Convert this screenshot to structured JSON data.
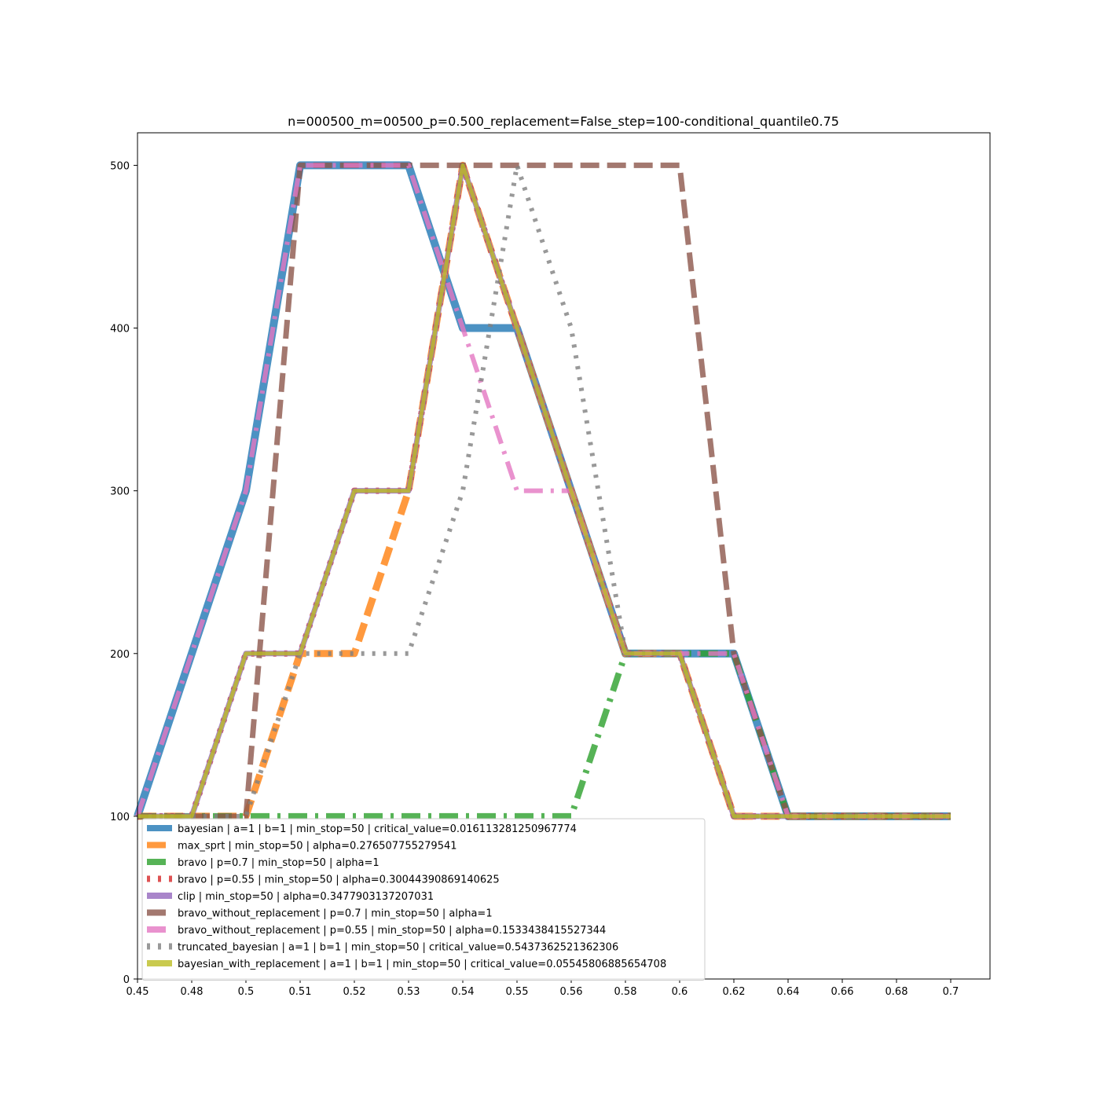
{
  "chart_data": {
    "type": "line",
    "title": "n=000500_m=00500_p=0.500_replacement=False_step=100-conditional_quantile0.75",
    "xlabel": "",
    "ylabel": "",
    "x_ticks": [
      "0.45",
      "0.48",
      "0.5",
      "0.51",
      "0.52",
      "0.53",
      "0.54",
      "0.55",
      "0.56",
      "0.58",
      "0.6",
      "0.62",
      "0.64",
      "0.66",
      "0.68",
      "0.7"
    ],
    "y_ticks": [
      0,
      100,
      200,
      300,
      400,
      500
    ],
    "ylim": [
      0,
      520
    ],
    "grid": false,
    "legend_position": "lower-left",
    "series": [
      {
        "name": "bayesian | a=1 | b=1 | min_stop=50 | critical_value=0.016113281250967774",
        "color": "#1f77b4",
        "style": "solid",
        "values": [
          100,
          200,
          300,
          500,
          500,
          500,
          400,
          400,
          300,
          200,
          200,
          200,
          100,
          100,
          100,
          100
        ]
      },
      {
        "name": "max_sprt | min_stop=50 | alpha=0.276507755279541",
        "color": "#ff7f0e",
        "style": "dashed",
        "values": [
          100,
          100,
          100,
          200,
          200,
          300,
          500,
          400,
          300,
          200,
          200,
          100,
          100,
          100,
          100,
          100
        ]
      },
      {
        "name": "bravo    | p=0.7 | min_stop=50 | alpha=1",
        "color": "#2ca02c",
        "style": "dashdot",
        "values": [
          100,
          100,
          100,
          100,
          100,
          100,
          100,
          100,
          100,
          200,
          200,
          200,
          100,
          100,
          100,
          100
        ]
      },
      {
        "name": "bravo    | p=0.55 | min_stop=50 | alpha=0.30044390869140625",
        "color": "#d62728",
        "style": "dotted",
        "values": [
          100,
          100,
          200,
          200,
          300,
          300,
          500,
          400,
          300,
          200,
          200,
          100,
          100,
          100,
          100,
          100
        ]
      },
      {
        "name": "clip     | min_stop=50 | alpha=0.3477903137207031",
        "color": "#9467bd",
        "style": "solid",
        "values": [
          100,
          100,
          200,
          200,
          300,
          300,
          500,
          400,
          300,
          200,
          200,
          100,
          100,
          100,
          100,
          100
        ]
      },
      {
        "name": "bravo_without_replacement | p=0.7 | min_stop=50 | alpha=1",
        "color": "#8c564b",
        "style": "dashed",
        "values": [
          100,
          100,
          100,
          500,
          500,
          500,
          500,
          500,
          500,
          500,
          500,
          200,
          100,
          100,
          100,
          100
        ]
      },
      {
        "name": "bravo_without_replacement | p=0.55 | min_stop=50 | alpha=0.1533438415527344",
        "color": "#e377c2",
        "style": "dashdot",
        "values": [
          100,
          200,
          300,
          500,
          500,
          500,
          400,
          300,
          300,
          200,
          200,
          200,
          100,
          100,
          100,
          100
        ]
      },
      {
        "name": "truncated_bayesian | a=1 | b=1 | min_stop=50 | critical_value=0.5437362521362306",
        "color": "#7f7f7f",
        "style": "dotted",
        "values": [
          100,
          100,
          100,
          200,
          200,
          200,
          300,
          500,
          400,
          200,
          200,
          100,
          100,
          100,
          100,
          100
        ]
      },
      {
        "name": "bayesian_with_replacement | a=1 | b=1 | min_stop=50 | critical_value=0.05545806885654708",
        "color": "#bcbd22",
        "style": "solid",
        "values": [
          100,
          100,
          200,
          200,
          300,
          300,
          500,
          400,
          300,
          200,
          200,
          100,
          100,
          100,
          100,
          100
        ]
      }
    ]
  }
}
